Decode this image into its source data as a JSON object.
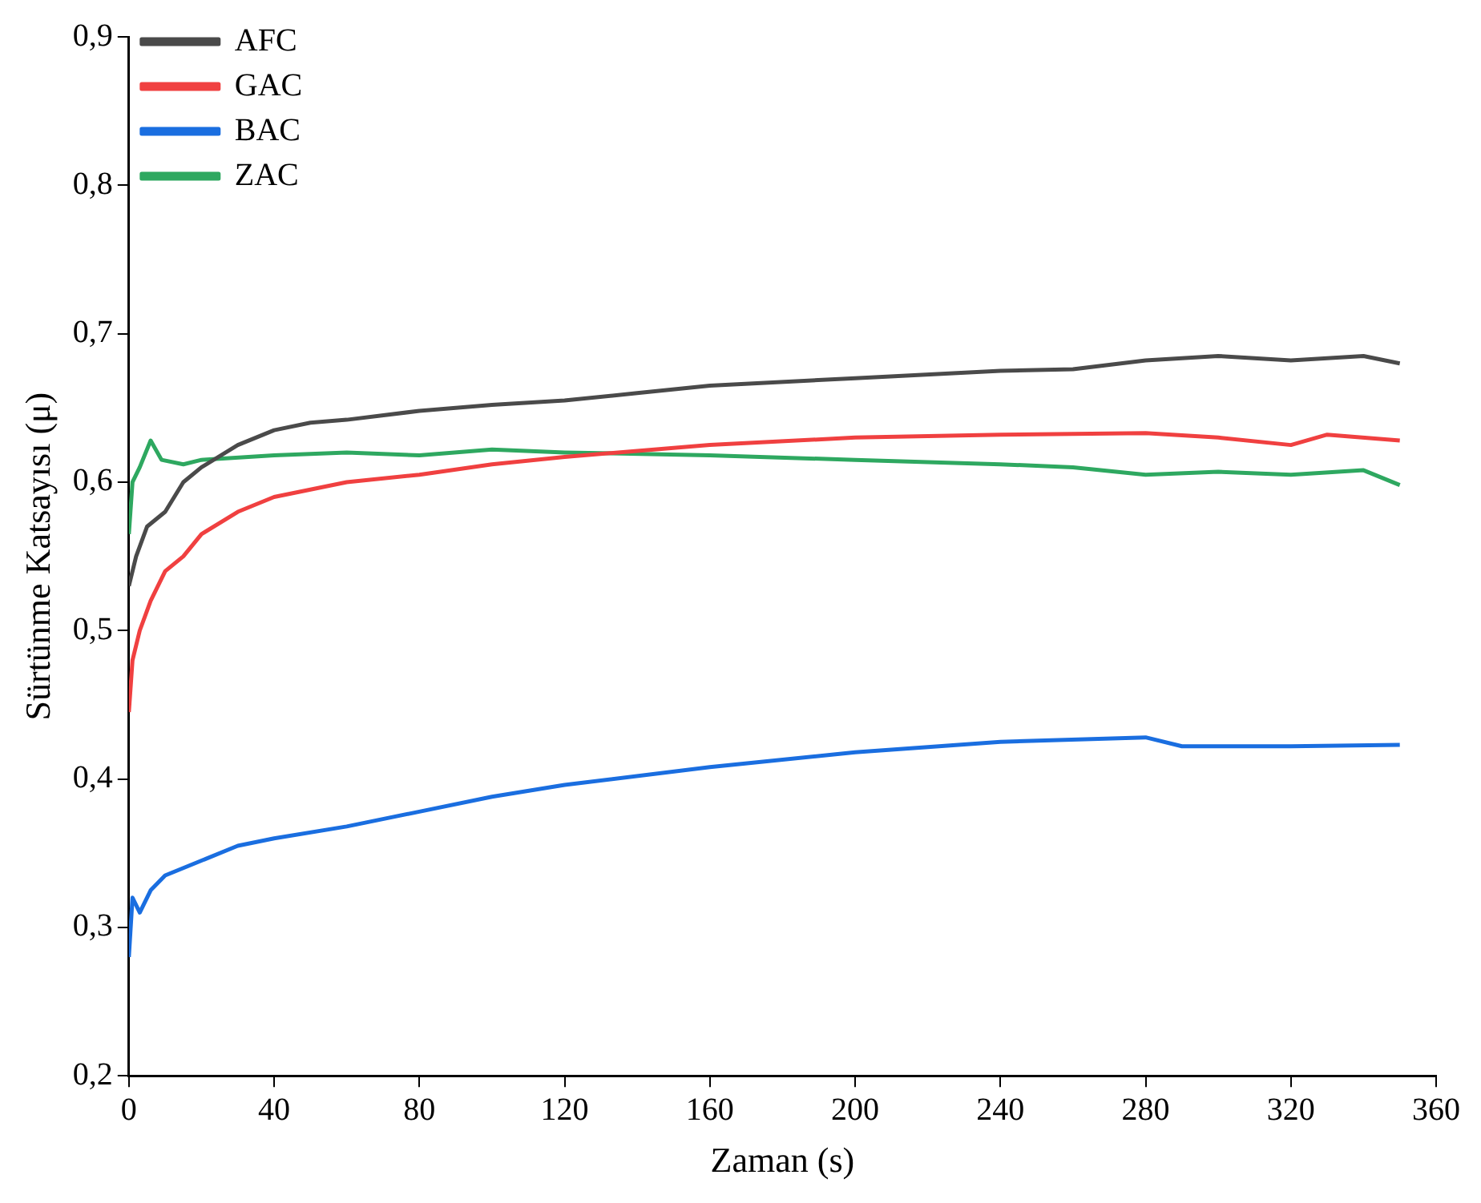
{
  "chart_data": {
    "type": "line",
    "xlabel": "Zaman (s)",
    "ylabel": "Sürtünme Katsayısı (μ)",
    "xlim": [
      0,
      360
    ],
    "xticks": [
      0,
      40,
      80,
      120,
      160,
      200,
      240,
      280,
      320,
      360
    ],
    "ylim": [
      0.2,
      0.9
    ],
    "yticks": [
      {
        "value": 0.2,
        "label": "0,2"
      },
      {
        "value": 0.3,
        "label": "0,3"
      },
      {
        "value": 0.4,
        "label": "0,4"
      },
      {
        "value": 0.5,
        "label": "0,5"
      },
      {
        "value": 0.6,
        "label": "0,6"
      },
      {
        "value": 0.7,
        "label": "0,7"
      },
      {
        "value": 0.8,
        "label": "0,8"
      },
      {
        "value": 0.9,
        "label": "0,9"
      }
    ],
    "grid": false,
    "legend": "top left",
    "marker": "none",
    "line_style": "solid",
    "series": [
      {
        "name": "AFC",
        "color": "#4a4a4a",
        "x": [
          0,
          2,
          5,
          10,
          15,
          20,
          30,
          40,
          50,
          60,
          80,
          100,
          120,
          140,
          160,
          200,
          240,
          260,
          280,
          300,
          320,
          340,
          350
        ],
        "values": [
          0.53,
          0.55,
          0.57,
          0.58,
          0.6,
          0.61,
          0.625,
          0.635,
          0.64,
          0.642,
          0.648,
          0.652,
          0.655,
          0.66,
          0.665,
          0.67,
          0.675,
          0.676,
          0.682,
          0.685,
          0.682,
          0.685,
          0.68
        ]
      },
      {
        "name": "GAC",
        "color": "#f04040",
        "x": [
          0,
          1,
          3,
          6,
          10,
          15,
          20,
          30,
          40,
          60,
          80,
          100,
          120,
          160,
          200,
          240,
          280,
          300,
          320,
          330,
          350
        ],
        "values": [
          0.445,
          0.48,
          0.5,
          0.52,
          0.54,
          0.55,
          0.565,
          0.58,
          0.59,
          0.6,
          0.605,
          0.612,
          0.617,
          0.625,
          0.63,
          0.632,
          0.633,
          0.63,
          0.625,
          0.632,
          0.628
        ]
      },
      {
        "name": "BAC",
        "color": "#1a6ee0",
        "x": [
          0,
          1,
          3,
          6,
          10,
          20,
          30,
          40,
          60,
          80,
          100,
          120,
          160,
          200,
          240,
          280,
          290,
          320,
          350
        ],
        "values": [
          0.28,
          0.32,
          0.31,
          0.325,
          0.335,
          0.345,
          0.355,
          0.36,
          0.368,
          0.378,
          0.388,
          0.396,
          0.408,
          0.418,
          0.425,
          0.428,
          0.422,
          0.422,
          0.423
        ]
      },
      {
        "name": "ZAC",
        "color": "#2ea860",
        "x": [
          0,
          1,
          3,
          6,
          9,
          15,
          20,
          40,
          60,
          80,
          100,
          120,
          160,
          200,
          240,
          260,
          280,
          300,
          320,
          340,
          350
        ],
        "values": [
          0.565,
          0.6,
          0.61,
          0.628,
          0.615,
          0.612,
          0.615,
          0.618,
          0.62,
          0.618,
          0.622,
          0.62,
          0.618,
          0.615,
          0.612,
          0.61,
          0.605,
          0.607,
          0.605,
          0.608,
          0.598
        ]
      }
    ]
  }
}
